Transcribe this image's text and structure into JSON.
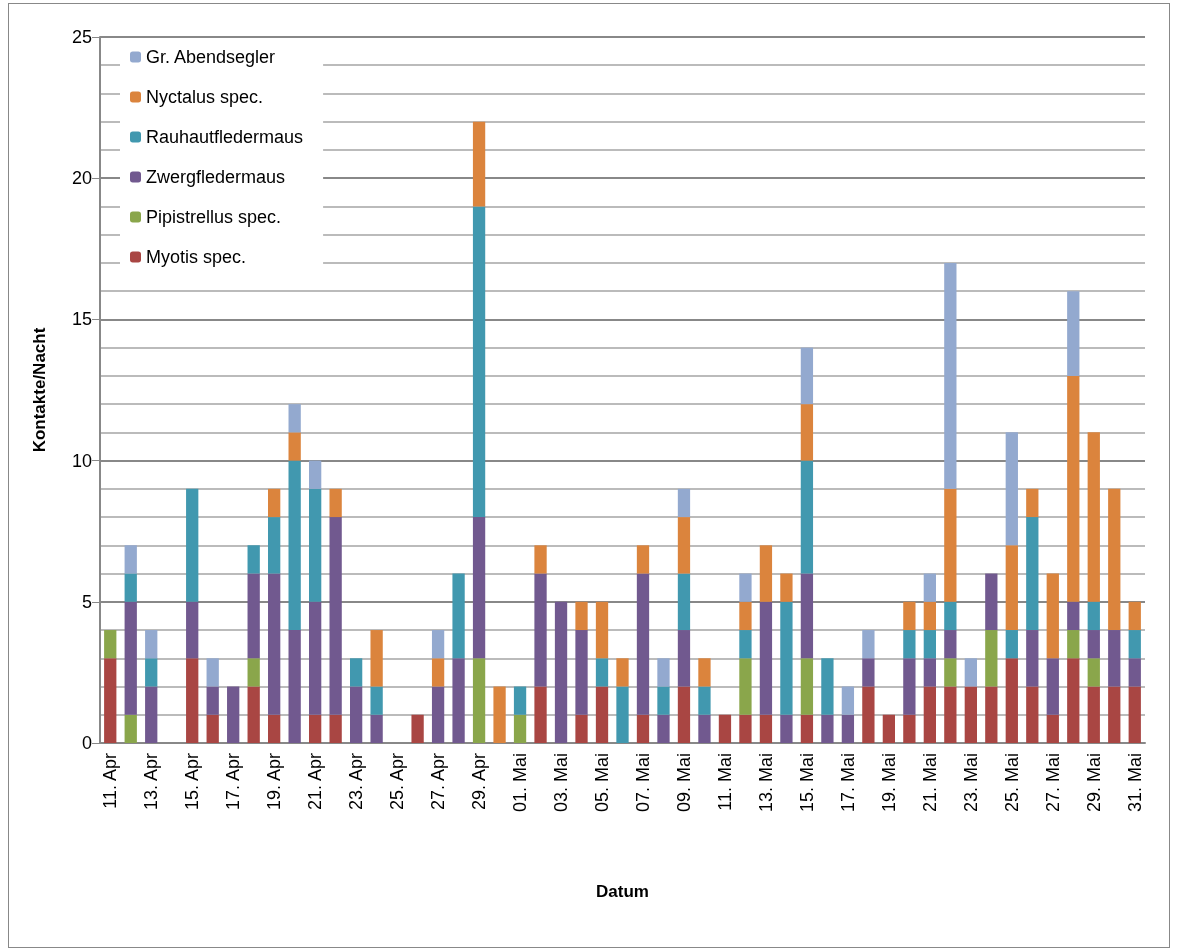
{
  "chart_data": {
    "type": "bar",
    "stacked": true,
    "xlabel": "Datum",
    "ylabel": "Kontakte/Nacht",
    "categories": [
      "11. Apr",
      null,
      "13. Apr",
      null,
      "15. Apr",
      null,
      "17. Apr",
      null,
      "19. Apr",
      null,
      "21. Apr",
      null,
      "23. Apr",
      null,
      "25. Apr",
      null,
      "27. Apr",
      null,
      "29. Apr",
      null,
      "01. Mai",
      null,
      "03. Mai",
      null,
      "05. Mai",
      null,
      "07. Mai",
      null,
      "09. Mai",
      null,
      "11. Mai",
      null,
      "13. Mai",
      null,
      "15. Mai",
      null,
      "17. Mai",
      null,
      "19. Mai",
      null,
      "21. Mai",
      null,
      "23. Mai",
      null,
      "25. Mai",
      null,
      "27. Mai",
      null,
      "29. Mai",
      null,
      "31. Mai"
    ],
    "series": [
      {
        "name": "Myotis spec.",
        "color": "#a94643",
        "values": [
          3,
          0,
          0,
          0,
          3,
          1,
          0,
          2,
          1,
          0,
          1,
          1,
          0,
          0,
          0,
          1,
          0,
          0,
          0,
          0,
          0,
          2,
          0,
          1,
          2,
          0,
          1,
          0,
          2,
          0,
          1,
          1,
          1,
          0,
          1,
          0,
          0,
          2,
          1,
          1,
          2,
          2,
          2,
          2,
          3,
          2,
          1,
          3,
          2,
          2,
          2
        ]
      },
      {
        "name": "Pipistrellus spec.",
        "color": "#8aa64b",
        "values": [
          1,
          1,
          0,
          0,
          0,
          0,
          0,
          1,
          0,
          0,
          0,
          0,
          0,
          0,
          0,
          0,
          0,
          0,
          3,
          0,
          1,
          0,
          0,
          0,
          0,
          0,
          0,
          0,
          0,
          0,
          0,
          2,
          0,
          0,
          2,
          0,
          0,
          0,
          0,
          0,
          0,
          1,
          0,
          2,
          0,
          0,
          0,
          1,
          1,
          0,
          0
        ]
      },
      {
        "name": "Zwergfledermaus",
        "color": "#71598f",
        "values": [
          0,
          4,
          2,
          0,
          2,
          1,
          2,
          3,
          5,
          4,
          4,
          7,
          2,
          1,
          0,
          0,
          2,
          3,
          5,
          0,
          0,
          4,
          5,
          3,
          0,
          0,
          5,
          1,
          2,
          1,
          0,
          0,
          4,
          1,
          3,
          1,
          1,
          1,
          0,
          2,
          1,
          1,
          0,
          2,
          0,
          2,
          2,
          1,
          1,
          2,
          1
        ]
      },
      {
        "name": "Rauhautfledermaus",
        "color": "#4198af",
        "values": [
          0,
          1,
          1,
          0,
          4,
          0,
          0,
          1,
          2,
          6,
          4,
          0,
          1,
          1,
          0,
          0,
          0,
          3,
          11,
          0,
          1,
          0,
          0,
          0,
          1,
          2,
          0,
          1,
          2,
          1,
          0,
          1,
          0,
          4,
          4,
          2,
          0,
          0,
          0,
          1,
          1,
          1,
          0,
          0,
          1,
          4,
          0,
          0,
          1,
          0,
          1
        ]
      },
      {
        "name": "Nyctalus spec.",
        "color": "#db843d",
        "values": [
          0,
          0,
          0,
          0,
          0,
          0,
          0,
          0,
          1,
          1,
          0,
          1,
          0,
          2,
          0,
          0,
          1,
          0,
          3,
          2,
          0,
          1,
          0,
          1,
          2,
          1,
          1,
          0,
          2,
          1,
          0,
          1,
          2,
          1,
          2,
          0,
          0,
          0,
          0,
          1,
          1,
          4,
          0,
          0,
          3,
          1,
          3,
          8,
          6,
          5,
          1
        ]
      },
      {
        "name": "Gr. Abendsegler",
        "color": "#93a9cf",
        "values": [
          0,
          1,
          1,
          0,
          0,
          1,
          0,
          0,
          0,
          1,
          1,
          0,
          0,
          0,
          0,
          0,
          1,
          0,
          0,
          0,
          0,
          0,
          0,
          0,
          0,
          0,
          0,
          1,
          1,
          0,
          0,
          1,
          0,
          0,
          2,
          0,
          1,
          1,
          0,
          0,
          1,
          8,
          1,
          0,
          4,
          0,
          0,
          3,
          0,
          0,
          0
        ]
      }
    ],
    "ylim": [
      0,
      25
    ],
    "yticks": [
      0,
      5,
      10,
      15,
      20,
      25
    ],
    "grid": "y",
    "legend": "top left"
  }
}
